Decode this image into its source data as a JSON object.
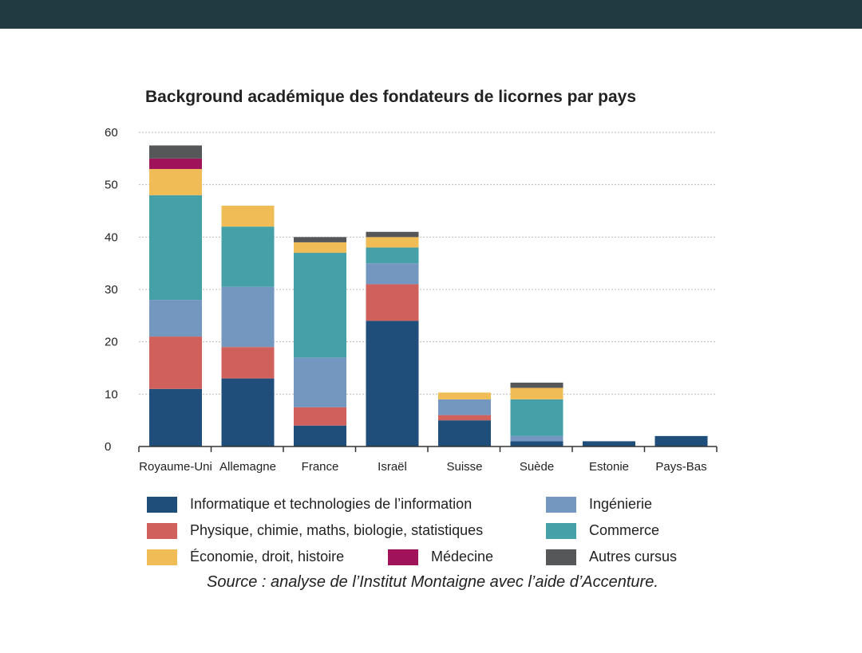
{
  "chart_data": {
    "type": "bar",
    "stacked": true,
    "title": "Background académique des fondateurs de licornes par pays",
    "xlabel": "",
    "ylabel": "",
    "ylim": [
      0,
      60
    ],
    "yticks": [
      "0",
      "10",
      "20",
      "30",
      "40",
      "50",
      "60"
    ],
    "grid": true,
    "legend_position": "bottom",
    "categories": [
      "Royaume-Uni",
      "Allemagne",
      "France",
      "Israël",
      "Suisse",
      "Suède",
      "Estonie",
      "Pays-Bas"
    ],
    "series": [
      {
        "name": "Informatique et technologies de l’information",
        "color": "#1f4e7a",
        "values": [
          11,
          13,
          4,
          24,
          5,
          1,
          1,
          2
        ]
      },
      {
        "name": "Physique, chimie, maths, biologie, statistiques",
        "color": "#d0605b",
        "values": [
          10,
          6,
          3.5,
          7,
          1,
          0,
          0,
          0
        ]
      },
      {
        "name": "Ingénierie",
        "color": "#7397bf",
        "values": [
          7,
          11.5,
          9.5,
          4,
          3,
          1,
          0,
          0
        ]
      },
      {
        "name": "Commerce",
        "color": "#45a0a8",
        "values": [
          20,
          11.5,
          20,
          3,
          0,
          7,
          0,
          0
        ]
      },
      {
        "name": "Économie, droit, histoire",
        "color": "#f0bc55",
        "values": [
          5,
          4,
          2,
          2,
          1.3,
          2.2,
          0,
          0
        ]
      },
      {
        "name": "Médecine",
        "color": "#a0125a",
        "values": [
          2,
          0,
          0,
          0,
          0,
          0,
          0,
          0
        ]
      },
      {
        "name": "Autres cursus",
        "color": "#555759",
        "values": [
          2.5,
          0,
          1,
          1,
          0,
          1,
          0,
          0
        ]
      }
    ],
    "source": "Source : analyse de l’Institut Montaigne avec l’aide d’Accenture."
  }
}
